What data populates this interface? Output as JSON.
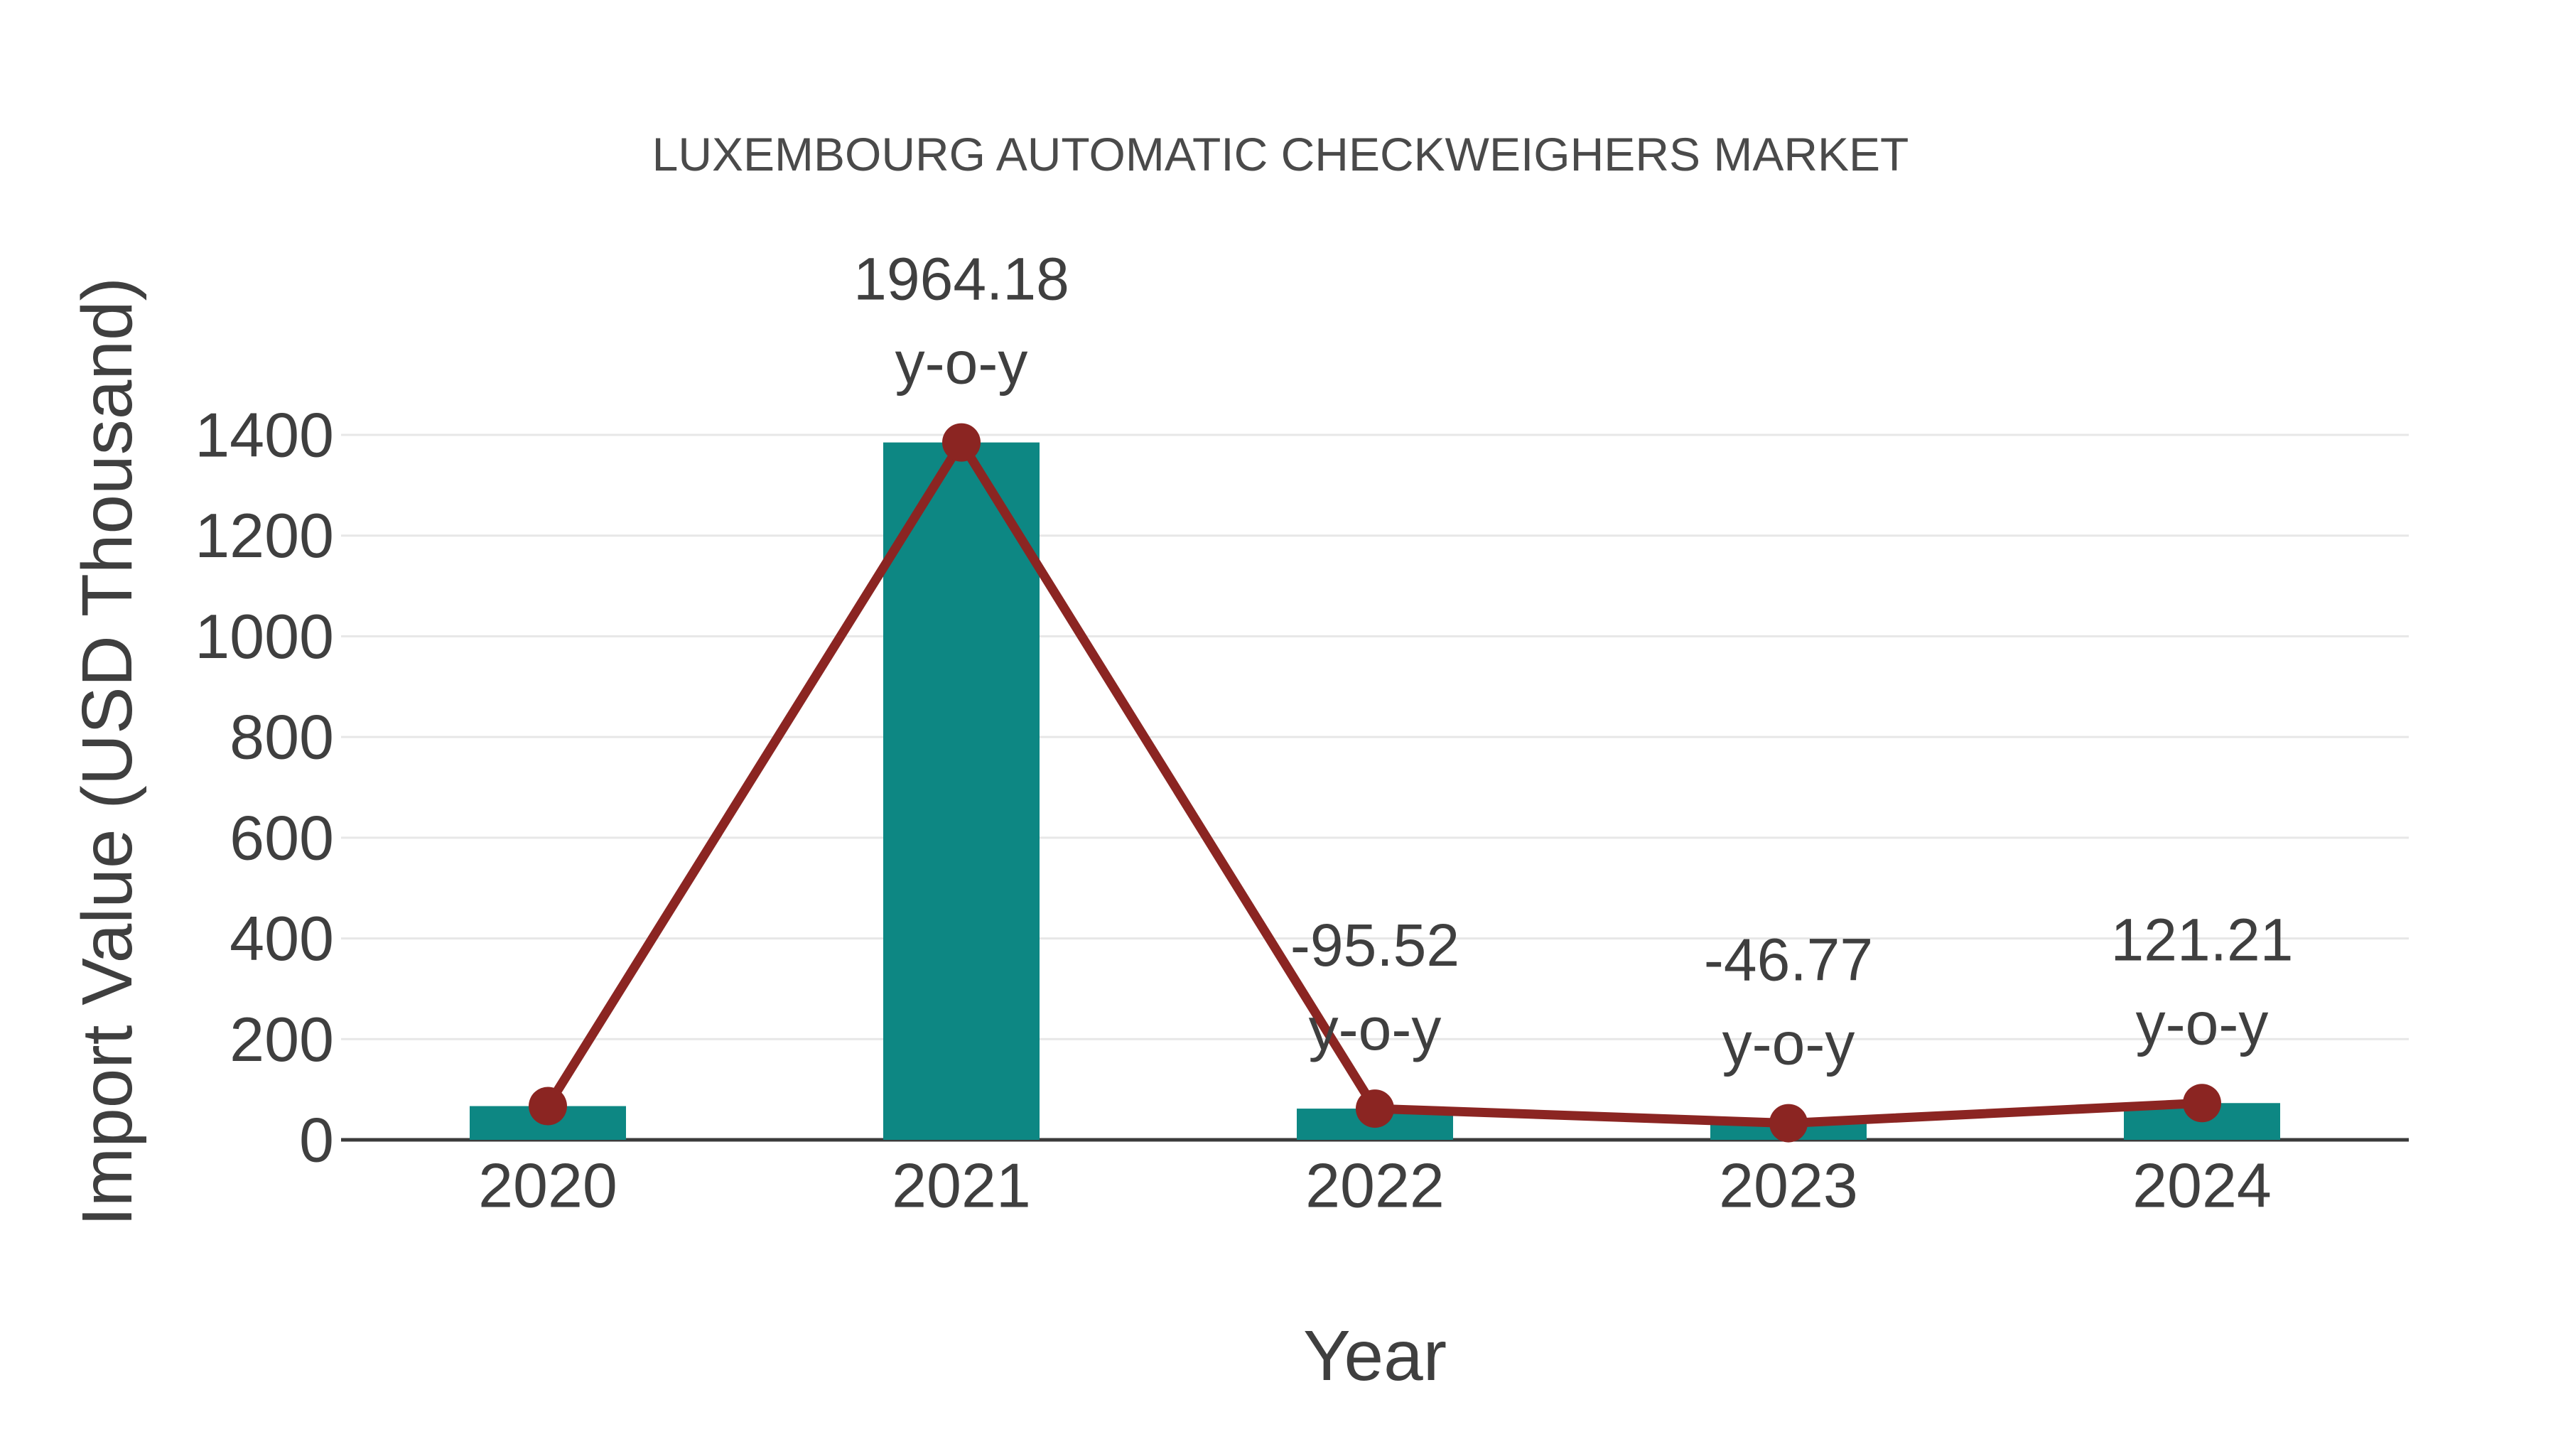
{
  "colors": {
    "background": "#ffffff",
    "bar": "#0d8783",
    "line": "#8b2522",
    "marker": "#8b2522",
    "grid": "#e7e7e7",
    "axis": "#3b3b3b",
    "text": "#3f3f3f",
    "title_text": "#4a4a4a"
  },
  "chart_data": {
    "type": "bar",
    "title": "LUXEMBOURG AUTOMATIC CHECKWEIGHERS MARKET",
    "xlabel": "Year",
    "ylabel": "Import Value (USD Thousand)",
    "categories": [
      "2020",
      "2021",
      "2022",
      "2023",
      "2024"
    ],
    "series": [
      {
        "name": "Import Value (bars)",
        "type": "bar",
        "values": [
          67,
          1385,
          62,
          33,
          73
        ]
      },
      {
        "name": "Import Value trend (line with markers)",
        "type": "line",
        "values": [
          67,
          1385,
          62,
          33,
          73
        ]
      }
    ],
    "annotations": [
      {
        "category": "2021",
        "line1": "1964.18",
        "line2": "y-o-y"
      },
      {
        "category": "2022",
        "line1": "-95.52",
        "line2": "y-o-y"
      },
      {
        "category": "2023",
        "line1": "-46.77",
        "line2": "y-o-y"
      },
      {
        "category": "2024",
        "line1": "121.21",
        "line2": "y-o-y"
      }
    ],
    "yticks": [
      0,
      200,
      400,
      600,
      800,
      1000,
      1200,
      1400
    ],
    "ylim": [
      0,
      1400
    ],
    "grid": true,
    "legend": "none"
  }
}
